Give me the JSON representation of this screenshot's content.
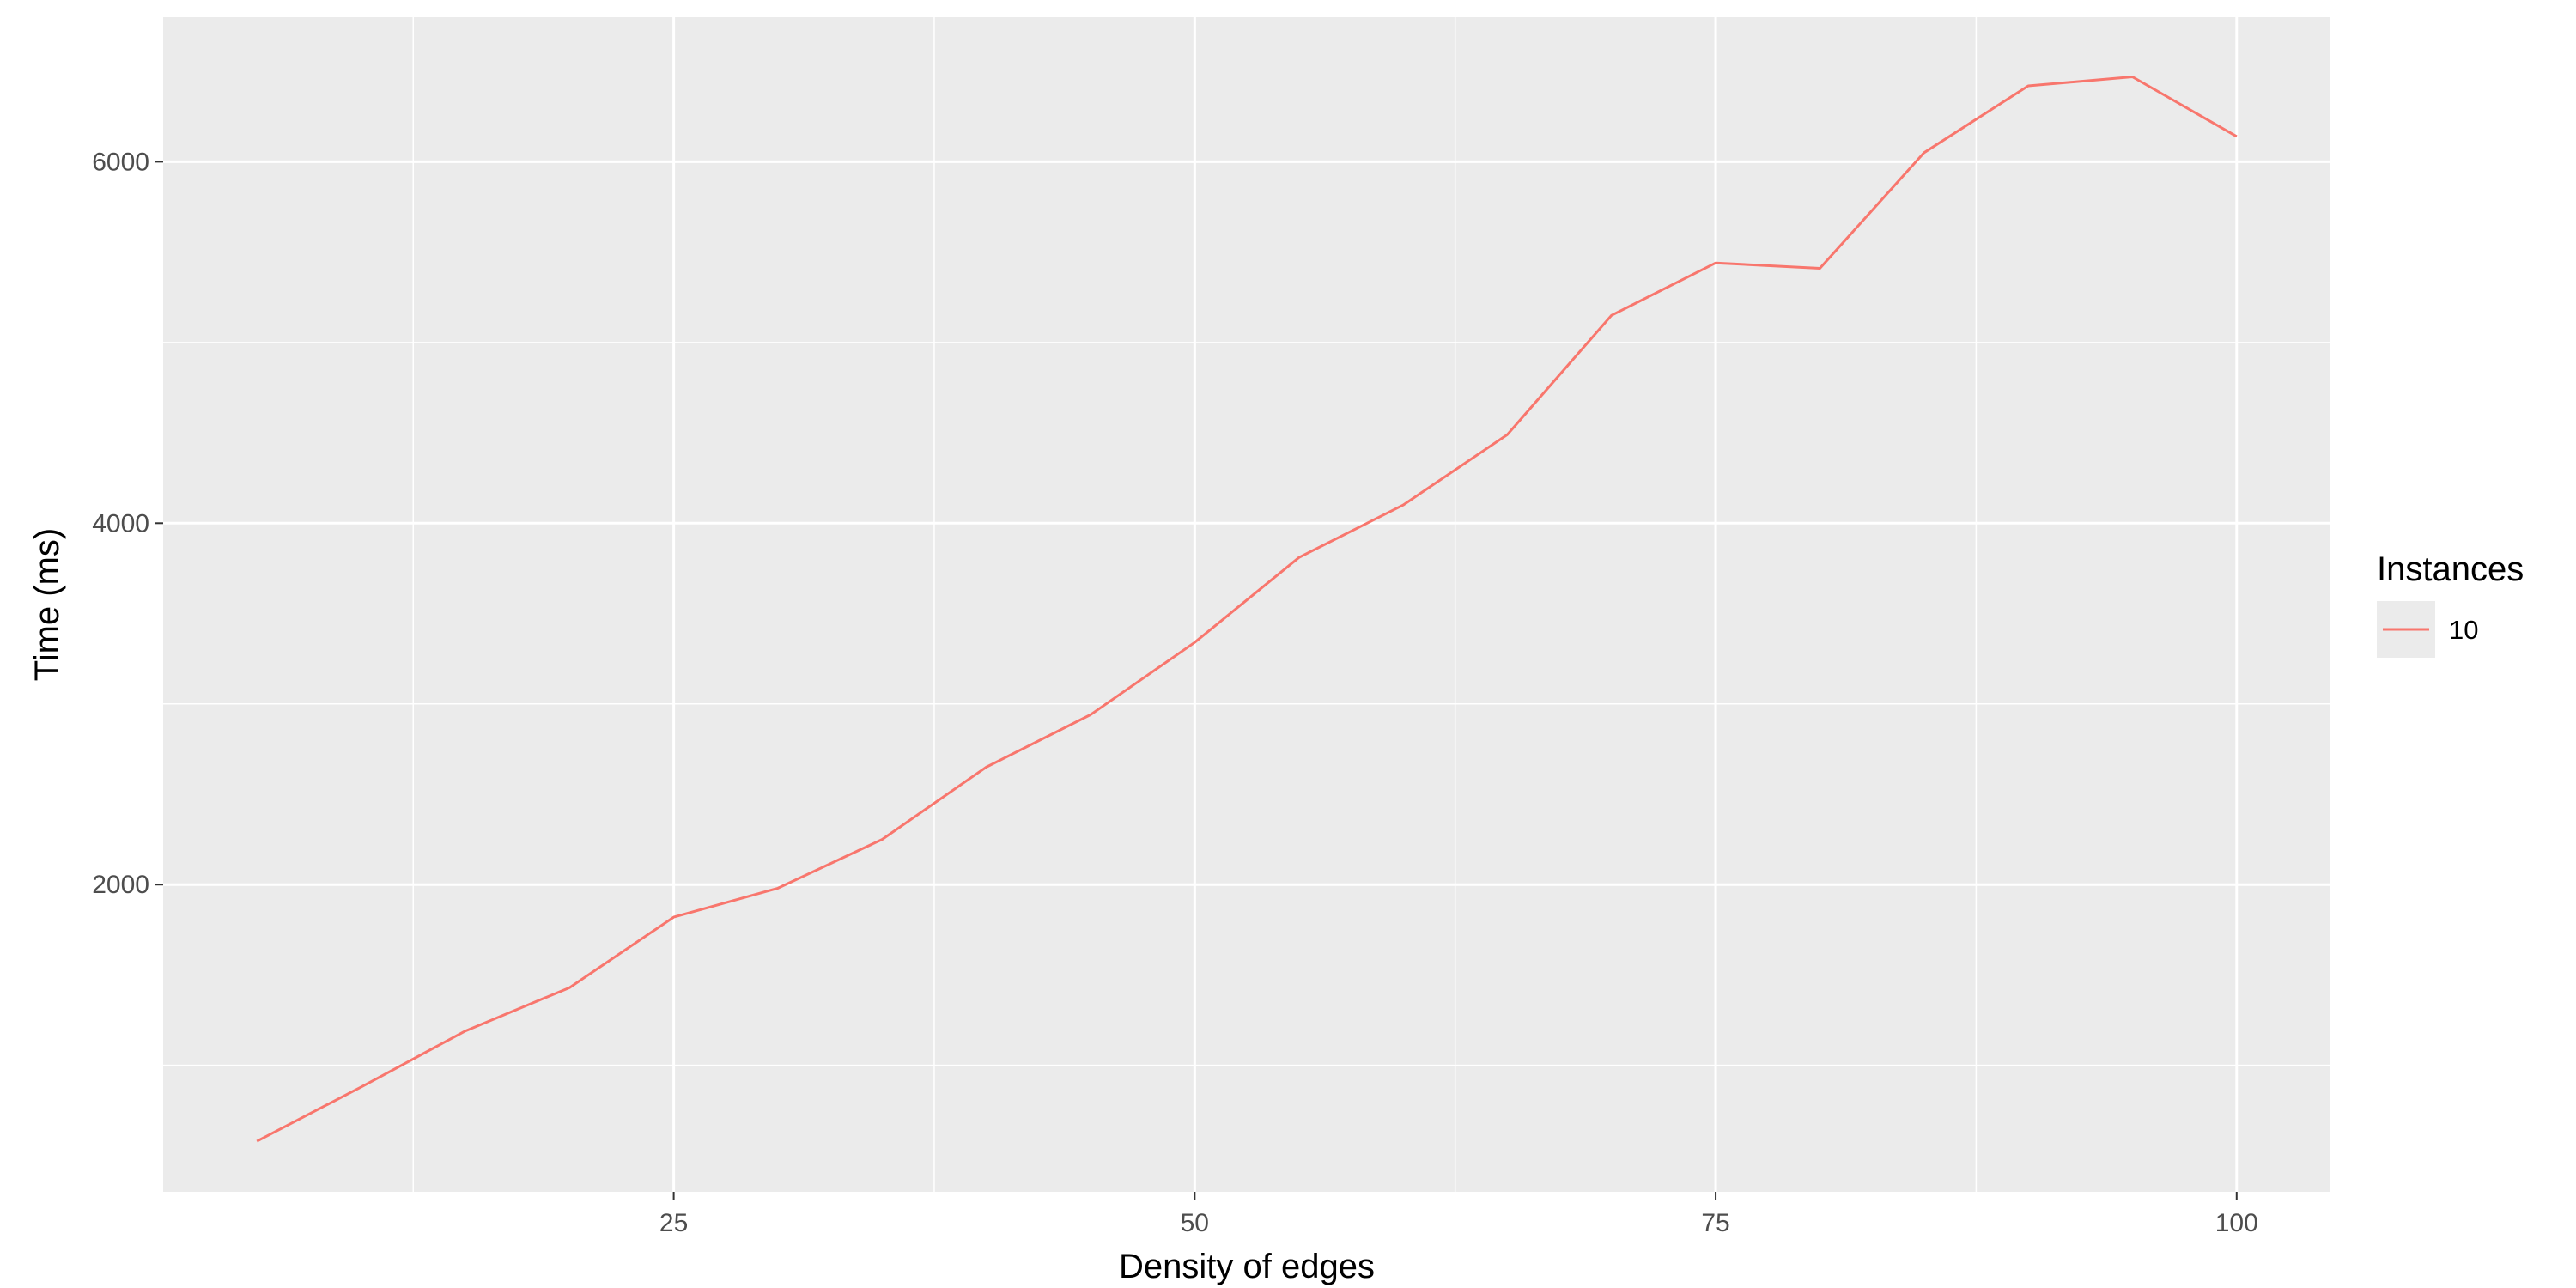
{
  "chart_data": {
    "type": "line",
    "xlabel": "Density of edges",
    "ylabel": "Time (ms)",
    "xlim": [
      0.5,
      104.5
    ],
    "ylim": [
      300,
      6800
    ],
    "x_ticks": [
      25,
      50,
      75,
      100
    ],
    "x_tick_labels": [
      "25",
      "50",
      "75",
      "100"
    ],
    "x_minor_ticks": [
      12.5,
      37.5,
      62.5,
      87.5
    ],
    "y_ticks": [
      2000,
      4000,
      6000
    ],
    "y_tick_labels": [
      "2000",
      "4000",
      "6000"
    ],
    "y_minor_ticks": [
      1000,
      3000,
      5000
    ],
    "grid": true,
    "legend": {
      "title": "Instances",
      "position": "right",
      "entries": [
        "10"
      ]
    },
    "series": [
      {
        "name": "10",
        "color": "#F8766D",
        "x": [
          5,
          10,
          15,
          20,
          25,
          30,
          35,
          40,
          45,
          50,
          55,
          60,
          65,
          70,
          75,
          80,
          85,
          90,
          95,
          100
        ],
        "y": [
          580,
          880,
          1190,
          1430,
          1820,
          1980,
          2250,
          2650,
          2940,
          3340,
          3810,
          4100,
          4490,
          5150,
          5440,
          5410,
          6050,
          6420,
          6470,
          6140
        ]
      }
    ]
  }
}
